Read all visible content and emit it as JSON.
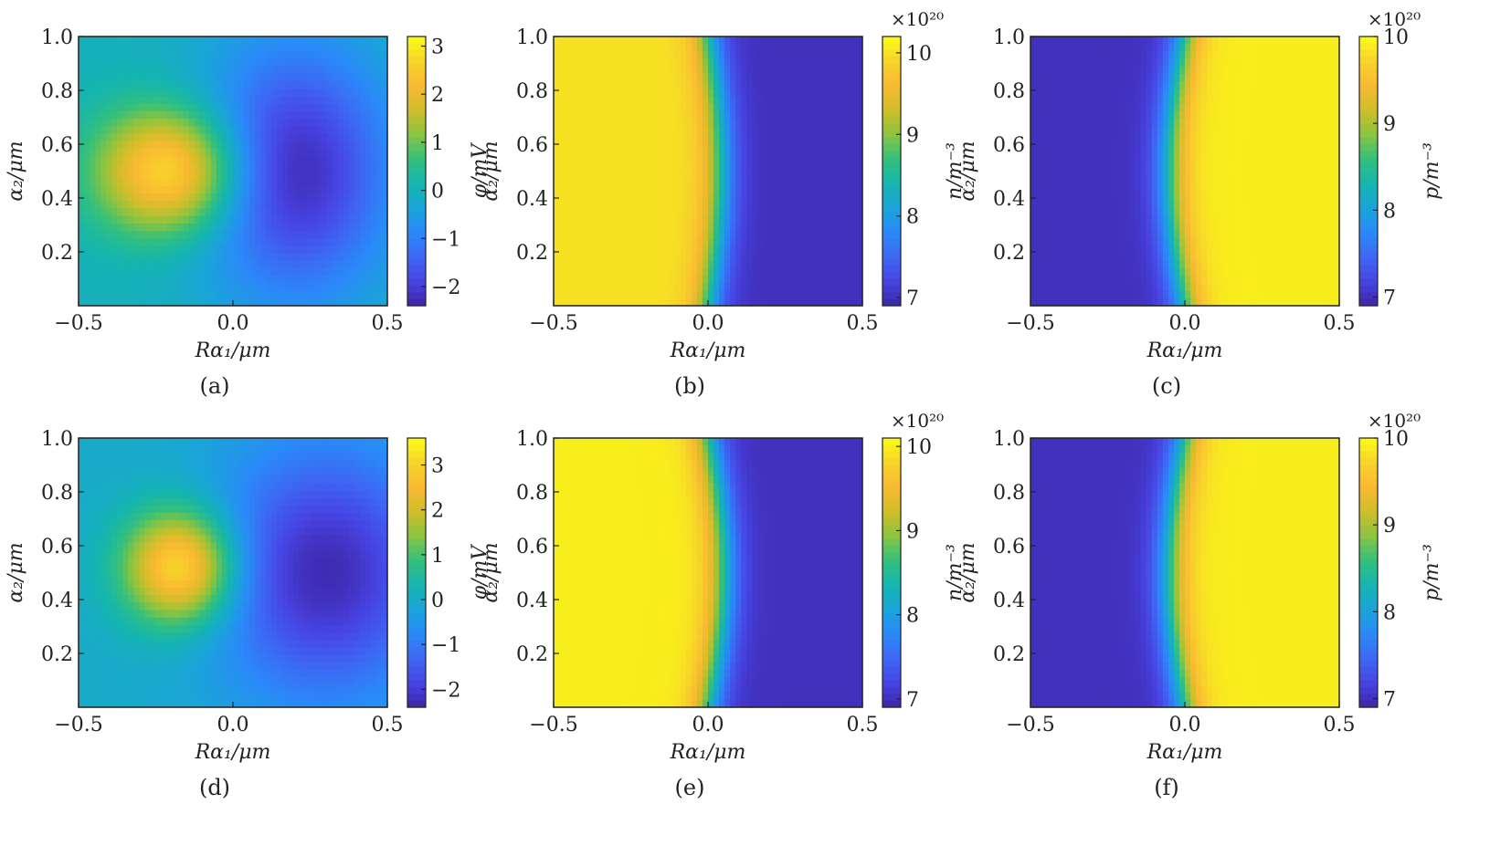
{
  "colormap": [
    "#3e26a8",
    "#4744e3",
    "#3d68f4",
    "#2a8af8",
    "#1aa4d9",
    "#15b5af",
    "#34c07c",
    "#8bc440",
    "#d0be2a",
    "#f9b932",
    "#f7d42a",
    "#f9fb15"
  ],
  "chart_data": [
    {
      "type": "heatmap",
      "panel": "(a)",
      "field": "potential",
      "xlabel": "Rα₁/μm",
      "ylabel": "α₂/μm",
      "cbar_label": "φ/mV",
      "cbar_exp": "",
      "xlim": [
        -0.5,
        0.5
      ],
      "ylim": [
        0.0,
        1.0
      ],
      "xticks": [
        "−0.5",
        "0.0",
        "0.5"
      ],
      "yticks": [
        "0.2",
        "0.4",
        "0.6",
        "0.8",
        "1.0"
      ],
      "clim": [
        -2.4,
        3.2
      ],
      "cticks": [
        "−2",
        "−1",
        "0",
        "1",
        "2",
        "3"
      ],
      "ctick_values": [
        -2,
        -1,
        0,
        1,
        2,
        3
      ],
      "blob_pos": {
        "x": -0.2,
        "y": 0.5,
        "max": 3.0,
        "sx": 0.22,
        "sy": 0.22
      },
      "blob_neg": {
        "x": 0.2,
        "y": 0.5,
        "min": -2.3,
        "sx": 0.3,
        "sy": 0.45
      }
    },
    {
      "type": "heatmap",
      "panel": "(b)",
      "field": "electron density",
      "xlabel": "Rα₁/μm",
      "ylabel": "α₂/μm",
      "cbar_label": "n/m⁻³",
      "cbar_exp": "×10²⁰",
      "xlim": [
        -0.5,
        0.5
      ],
      "ylim": [
        0.0,
        1.0
      ],
      "xticks": [
        "−0.5",
        "0.0",
        "0.5"
      ],
      "yticks": [
        "0.2",
        "0.4",
        "0.6",
        "0.8",
        "1.0"
      ],
      "clim": [
        6.9,
        10.2
      ],
      "cticks": [
        "7",
        "8",
        "9",
        "10"
      ],
      "ctick_values": [
        7,
        8,
        9,
        10
      ],
      "high": 10.0,
      "low": 7.0,
      "high_side": "left",
      "junction_bulge": 0.04
    },
    {
      "type": "heatmap",
      "panel": "(c)",
      "field": "hole density",
      "xlabel": "Rα₁/μm",
      "ylabel": "α₂/μm",
      "cbar_label": "p/m⁻³",
      "cbar_exp": "×10²⁰",
      "xlim": [
        -0.5,
        0.5
      ],
      "ylim": [
        0.0,
        1.0
      ],
      "xticks": [
        "−0.5",
        "0.0",
        "0.5"
      ],
      "yticks": [
        "0.2",
        "0.4",
        "0.6",
        "0.8",
        "1.0"
      ],
      "clim": [
        6.9,
        10.0
      ],
      "cticks": [
        "7",
        "8",
        "9",
        "10"
      ],
      "ctick_values": [
        7,
        8,
        9,
        10
      ],
      "high": 9.9,
      "low": 7.0,
      "high_side": "right",
      "junction_bulge": 0.05
    },
    {
      "type": "heatmap",
      "panel": "(d)",
      "field": "potential",
      "xlabel": "Rα₁/μm",
      "ylabel": "α₂/μm",
      "cbar_label": "φ/mV",
      "cbar_exp": "",
      "xlim": [
        -0.5,
        0.5
      ],
      "ylim": [
        0.0,
        1.0
      ],
      "xticks": [
        "−0.5",
        "0.0",
        "0.5"
      ],
      "yticks": [
        "0.2",
        "0.4",
        "0.6",
        "0.8",
        "1.0"
      ],
      "clim": [
        -2.4,
        3.6
      ],
      "cticks": [
        "−2",
        "−1",
        "0",
        "1",
        "2",
        "3"
      ],
      "ctick_values": [
        -2,
        -1,
        0,
        1,
        2,
        3
      ],
      "blob_pos": {
        "x": -0.17,
        "y": 0.52,
        "max": 3.4,
        "sx": 0.17,
        "sy": 0.2
      },
      "blob_neg": {
        "x": 0.3,
        "y": 0.5,
        "min": -2.3,
        "sx": 0.35,
        "sy": 0.45
      }
    },
    {
      "type": "heatmap",
      "panel": "(e)",
      "field": "electron density",
      "xlabel": "Rα₁/μm",
      "ylabel": "α₂/μm",
      "cbar_label": "n/m⁻³",
      "cbar_exp": "×10²⁰",
      "xlim": [
        -0.5,
        0.5
      ],
      "ylim": [
        0.0,
        1.0
      ],
      "xticks": [
        "−0.5",
        "0.0",
        "0.5"
      ],
      "yticks": [
        "0.2",
        "0.4",
        "0.6",
        "0.8",
        "1.0"
      ],
      "clim": [
        6.9,
        10.1
      ],
      "cticks": [
        "7",
        "8",
        "9",
        "10"
      ],
      "ctick_values": [
        7,
        8,
        9,
        10
      ],
      "high": 10.0,
      "low": 7.0,
      "high_side": "left",
      "junction_bulge": 0.05
    },
    {
      "type": "heatmap",
      "panel": "(f)",
      "field": "hole density",
      "xlabel": "Rα₁/μm",
      "ylabel": "α₂/μm",
      "cbar_label": "p/m⁻³",
      "cbar_exp": "×10²⁰",
      "xlim": [
        -0.5,
        0.5
      ],
      "ylim": [
        0.0,
        1.0
      ],
      "xticks": [
        "−0.5",
        "0.0",
        "0.5"
      ],
      "yticks": [
        "0.2",
        "0.4",
        "0.6",
        "0.8",
        "1.0"
      ],
      "clim": [
        6.9,
        10.0
      ],
      "cticks": [
        "7",
        "8",
        "9",
        "10"
      ],
      "ctick_values": [
        7,
        8,
        9,
        10
      ],
      "high": 9.9,
      "low": 7.0,
      "high_side": "right",
      "junction_bulge": 0.05
    }
  ]
}
